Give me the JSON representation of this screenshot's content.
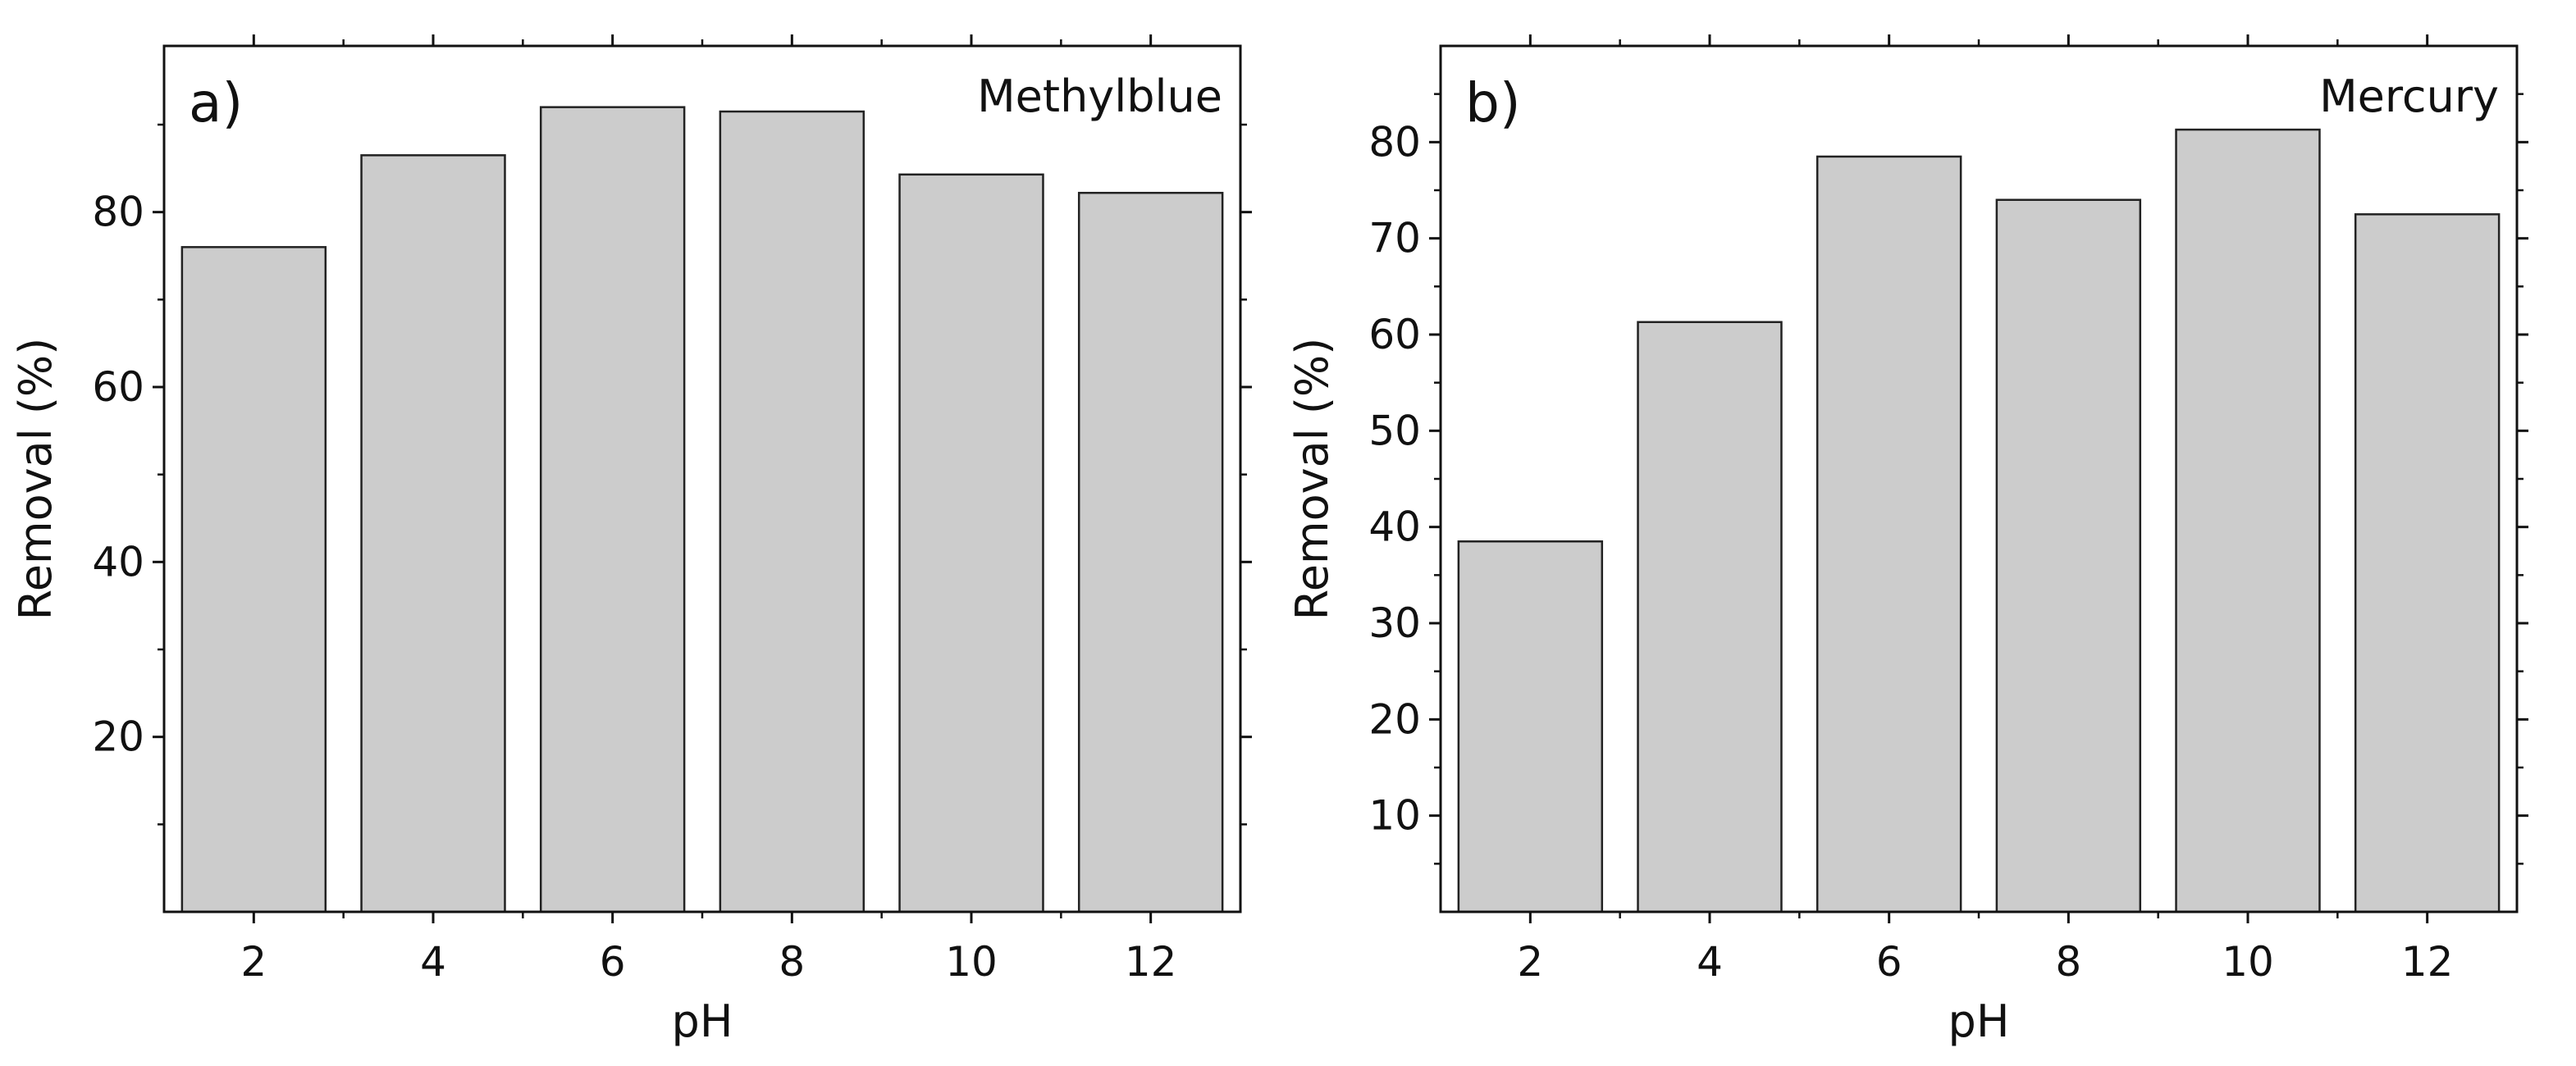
{
  "colors": {
    "bar_fill": "#cccccc",
    "bar_stroke": "#222222",
    "axis": "#111111"
  },
  "chart_data": [
    {
      "type": "bar",
      "panel_label": "a)",
      "series_label": "Methylblue",
      "xlabel": "pH",
      "ylabel": "Removal (%)",
      "categories": [
        "2",
        "4",
        "6",
        "8",
        "10",
        "12"
      ],
      "values": [
        76,
        86.5,
        92,
        91.5,
        84.3,
        82.2
      ],
      "ylim": [
        0,
        99
      ],
      "yticks": [
        20,
        40,
        60,
        80
      ],
      "ytick_labels": [
        "20",
        "40",
        "60",
        "80"
      ],
      "yminor_step": 10,
      "grid": false,
      "legend": "none"
    },
    {
      "type": "bar",
      "panel_label": "b)",
      "series_label": "Mercury",
      "xlabel": "pH",
      "ylabel": "Removal (%)",
      "categories": [
        "2",
        "4",
        "6",
        "8",
        "10",
        "12"
      ],
      "values": [
        38.5,
        61.3,
        78.5,
        74,
        81.3,
        72.5
      ],
      "ylim": [
        0,
        90
      ],
      "yticks": [
        10,
        20,
        30,
        40,
        50,
        60,
        70,
        80
      ],
      "ytick_labels": [
        "10",
        "20",
        "30",
        "40",
        "50",
        "60",
        "70",
        "80"
      ],
      "yminor_step": 5,
      "grid": false,
      "legend": "none"
    }
  ]
}
